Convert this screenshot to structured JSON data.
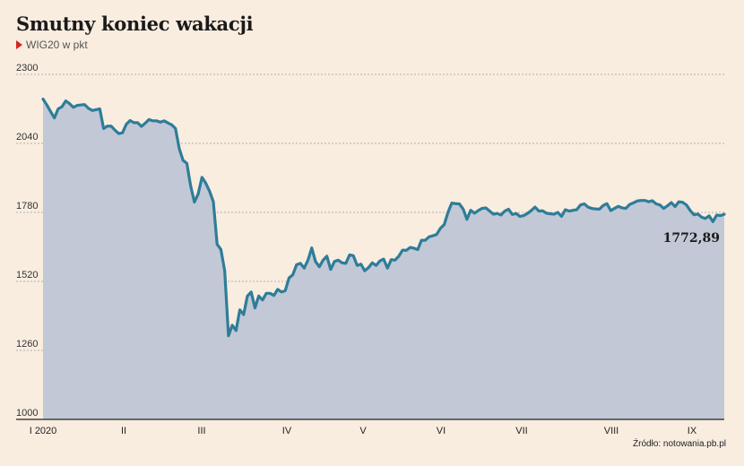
{
  "chart_data": {
    "type": "area",
    "title": "Smutny koniec wakacji",
    "subtitle": "WIG20 w pkt",
    "source": "Źródło: notowania.pb.pl",
    "xlabel": "",
    "ylabel": "",
    "ylim": [
      1000,
      2300
    ],
    "yticks": [
      1000,
      1260,
      1520,
      1780,
      2040,
      2300
    ],
    "ytick_labels": [
      "1000",
      "1260",
      "1520",
      "1780",
      "2040",
      "2300"
    ],
    "grid": true,
    "xtick_labels": [
      "I 2020",
      "II",
      "III",
      "IV",
      "V",
      "VI",
      "VII",
      "VIII",
      "IX"
    ],
    "last_value_label": "1772,89",
    "colors": {
      "line": "#2e7d98",
      "fill": "#c3c8d6",
      "grid": "#999999",
      "background": "#f9ede0"
    },
    "series": [
      {
        "values": [
          2207,
          2185,
          2160,
          2136,
          2170,
          2178,
          2200,
          2190,
          2176,
          2183,
          2185,
          2186,
          2172,
          2164,
          2167,
          2170,
          2096,
          2105,
          2105,
          2090,
          2077,
          2080,
          2112,
          2126,
          2118,
          2118,
          2104,
          2116,
          2130,
          2125,
          2125,
          2120,
          2125,
          2117,
          2110,
          2096,
          2020,
          1976,
          1965,
          1880,
          1819,
          1850,
          1912,
          1890,
          1860,
          1820,
          1660,
          1640,
          1560,
          1315,
          1355,
          1335,
          1413,
          1395,
          1465,
          1480,
          1420,
          1465,
          1450,
          1475,
          1475,
          1467,
          1490,
          1480,
          1485,
          1533,
          1545,
          1583,
          1588,
          1570,
          1600,
          1646,
          1595,
          1575,
          1600,
          1615,
          1565,
          1595,
          1600,
          1590,
          1588,
          1620,
          1617,
          1580,
          1585,
          1560,
          1572,
          1590,
          1580,
          1597,
          1604,
          1570,
          1602,
          1600,
          1615,
          1638,
          1637,
          1648,
          1645,
          1640,
          1675,
          1675,
          1688,
          1692,
          1697,
          1720,
          1734,
          1780,
          1815,
          1813,
          1812,
          1793,
          1754,
          1788,
          1777,
          1787,
          1795,
          1797,
          1785,
          1773,
          1776,
          1770,
          1785,
          1792,
          1772,
          1776,
          1765,
          1768,
          1776,
          1787,
          1800,
          1785,
          1786,
          1777,
          1775,
          1773,
          1780,
          1765,
          1790,
          1785,
          1788,
          1790,
          1808,
          1812,
          1800,
          1795,
          1793,
          1792,
          1806,
          1813,
          1787,
          1795,
          1803,
          1797,
          1795,
          1810,
          1816,
          1823,
          1825,
          1825,
          1820,
          1824,
          1812,
          1808,
          1795,
          1805,
          1817,
          1802,
          1820,
          1818,
          1808,
          1787,
          1771,
          1774,
          1762,
          1757,
          1767,
          1745,
          1770,
          1768,
          1772.89
        ]
      }
    ]
  }
}
